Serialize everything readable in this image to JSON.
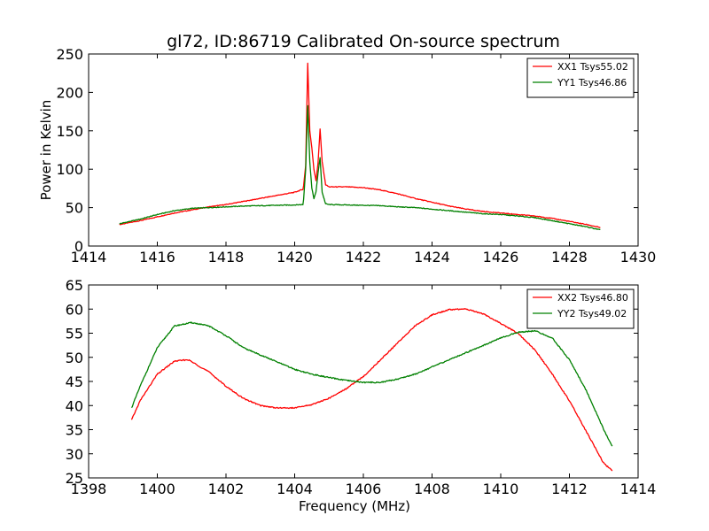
{
  "title": "gl72, ID:86719 Calibrated On-source spectrum",
  "chart_data": [
    {
      "type": "line",
      "panel": "top",
      "title": "gl72, ID:86719 Calibrated On-source spectrum",
      "xlabel": "",
      "ylabel": "Power in Kelvin",
      "xlim": [
        1414,
        1430
      ],
      "ylim": [
        0,
        250
      ],
      "xticks": [
        "1414",
        "1416",
        "1418",
        "1420",
        "1422",
        "1424",
        "1426",
        "1428",
        "1430"
      ],
      "yticks": [
        "0",
        "50",
        "100",
        "150",
        "200",
        "250"
      ],
      "legend_position": "top-right",
      "grid": false,
      "series": [
        {
          "name": "XX1 Tsys55.02",
          "color": "#ff0000",
          "points": [
            [
              1414.9,
              28
            ],
            [
              1415.5,
              33
            ],
            [
              1416.0,
              38
            ],
            [
              1416.5,
              43
            ],
            [
              1417.0,
              47
            ],
            [
              1417.5,
              51
            ],
            [
              1418.0,
              54
            ],
            [
              1418.5,
              58
            ],
            [
              1419.0,
              62
            ],
            [
              1419.5,
              66
            ],
            [
              1420.0,
              70
            ],
            [
              1420.25,
              74
            ],
            [
              1420.32,
              105
            ],
            [
              1420.38,
              238
            ],
            [
              1420.44,
              150
            ],
            [
              1420.5,
              128
            ],
            [
              1420.56,
              100
            ],
            [
              1420.62,
              85
            ],
            [
              1420.68,
              108
            ],
            [
              1420.74,
              152
            ],
            [
              1420.8,
              110
            ],
            [
              1420.9,
              80
            ],
            [
              1421.0,
              77
            ],
            [
              1421.5,
              77
            ],
            [
              1422.0,
              76
            ],
            [
              1422.5,
              73
            ],
            [
              1423.0,
              68
            ],
            [
              1423.5,
              62
            ],
            [
              1424.0,
              57
            ],
            [
              1424.5,
              52
            ],
            [
              1425.0,
              48
            ],
            [
              1425.5,
              45
            ],
            [
              1426.0,
              43
            ],
            [
              1426.5,
              41
            ],
            [
              1427.0,
              39
            ],
            [
              1427.5,
              36
            ],
            [
              1428.0,
              32
            ],
            [
              1428.5,
              28
            ],
            [
              1428.9,
              24
            ]
          ]
        },
        {
          "name": "YY1 Tsys46.86",
          "color": "#008000",
          "points": [
            [
              1414.9,
              29
            ],
            [
              1415.5,
              35
            ],
            [
              1416.0,
              41
            ],
            [
              1416.5,
              46
            ],
            [
              1417.0,
              49
            ],
            [
              1417.5,
              50
            ],
            [
              1418.0,
              51
            ],
            [
              1418.5,
              52
            ],
            [
              1419.0,
              52.5
            ],
            [
              1419.5,
              53
            ],
            [
              1420.0,
              53.5
            ],
            [
              1420.25,
              54
            ],
            [
              1420.32,
              100
            ],
            [
              1420.38,
              183
            ],
            [
              1420.44,
              110
            ],
            [
              1420.5,
              75
            ],
            [
              1420.56,
              62
            ],
            [
              1420.62,
              70
            ],
            [
              1420.68,
              95
            ],
            [
              1420.74,
              115
            ],
            [
              1420.8,
              70
            ],
            [
              1420.9,
              55
            ],
            [
              1421.0,
              54
            ],
            [
              1421.5,
              53.5
            ],
            [
              1422.0,
              53
            ],
            [
              1422.5,
              52.5
            ],
            [
              1423.0,
              51
            ],
            [
              1423.5,
              50
            ],
            [
              1424.0,
              48
            ],
            [
              1424.5,
              46
            ],
            [
              1425.0,
              44
            ],
            [
              1425.5,
              42
            ],
            [
              1426.0,
              41
            ],
            [
              1426.5,
              39
            ],
            [
              1427.0,
              37
            ],
            [
              1427.5,
              33
            ],
            [
              1428.0,
              29
            ],
            [
              1428.5,
              25
            ],
            [
              1428.9,
              21
            ]
          ]
        }
      ]
    },
    {
      "type": "line",
      "panel": "bottom",
      "title": "",
      "xlabel": "Frequency (MHz)",
      "ylabel": "",
      "xlim": [
        1398,
        1414
      ],
      "ylim": [
        25,
        65
      ],
      "xticks": [
        "1398",
        "1400",
        "1402",
        "1404",
        "1406",
        "1408",
        "1410",
        "1412",
        "1414"
      ],
      "yticks": [
        "25",
        "30",
        "35",
        "40",
        "45",
        "50",
        "55",
        "60",
        "65"
      ],
      "legend_position": "top-right",
      "grid": false,
      "series": [
        {
          "name": "XX2 Tsys46.80",
          "color": "#ff0000",
          "points": [
            [
              1399.25,
              37
            ],
            [
              1399.5,
              41
            ],
            [
              1400.0,
              46.5
            ],
            [
              1400.5,
              49.2
            ],
            [
              1400.9,
              49.5
            ],
            [
              1401.5,
              47
            ],
            [
              1402.0,
              44
            ],
            [
              1402.5,
              41.5
            ],
            [
              1403.0,
              40
            ],
            [
              1403.5,
              39.5
            ],
            [
              1404.0,
              39.5
            ],
            [
              1404.5,
              40.2
            ],
            [
              1405.0,
              41.5
            ],
            [
              1405.5,
              43.5
            ],
            [
              1406.0,
              46
            ],
            [
              1406.5,
              49.5
            ],
            [
              1407.0,
              53
            ],
            [
              1407.5,
              56.5
            ],
            [
              1408.0,
              58.8
            ],
            [
              1408.5,
              59.9
            ],
            [
              1409.0,
              60
            ],
            [
              1409.5,
              59
            ],
            [
              1410.0,
              57
            ],
            [
              1410.5,
              55
            ],
            [
              1411.0,
              51.5
            ],
            [
              1411.5,
              46.5
            ],
            [
              1412.0,
              41
            ],
            [
              1412.5,
              34.5
            ],
            [
              1413.0,
              28
            ],
            [
              1413.25,
              26.5
            ]
          ]
        },
        {
          "name": "YY2 Tsys49.02",
          "color": "#008000",
          "points": [
            [
              1399.25,
              39.5
            ],
            [
              1399.5,
              44
            ],
            [
              1400.0,
              52
            ],
            [
              1400.5,
              56.5
            ],
            [
              1401.0,
              57.2
            ],
            [
              1401.5,
              56.5
            ],
            [
              1402.0,
              54.5
            ],
            [
              1402.5,
              52
            ],
            [
              1403.0,
              50.5
            ],
            [
              1403.5,
              49
            ],
            [
              1404.0,
              47.5
            ],
            [
              1404.5,
              46.5
            ],
            [
              1405.0,
              45.8
            ],
            [
              1405.5,
              45.2
            ],
            [
              1406.0,
              44.8
            ],
            [
              1406.5,
              44.8
            ],
            [
              1407.0,
              45.5
            ],
            [
              1407.5,
              46.5
            ],
            [
              1408.0,
              48
            ],
            [
              1408.5,
              49.5
            ],
            [
              1409.0,
              51
            ],
            [
              1409.5,
              52.5
            ],
            [
              1410.0,
              54
            ],
            [
              1410.5,
              55.2
            ],
            [
              1411.0,
              55.5
            ],
            [
              1411.5,
              54
            ],
            [
              1412.0,
              49.5
            ],
            [
              1412.5,
              43
            ],
            [
              1413.0,
              35
            ],
            [
              1413.25,
              31.5
            ]
          ]
        }
      ]
    }
  ]
}
